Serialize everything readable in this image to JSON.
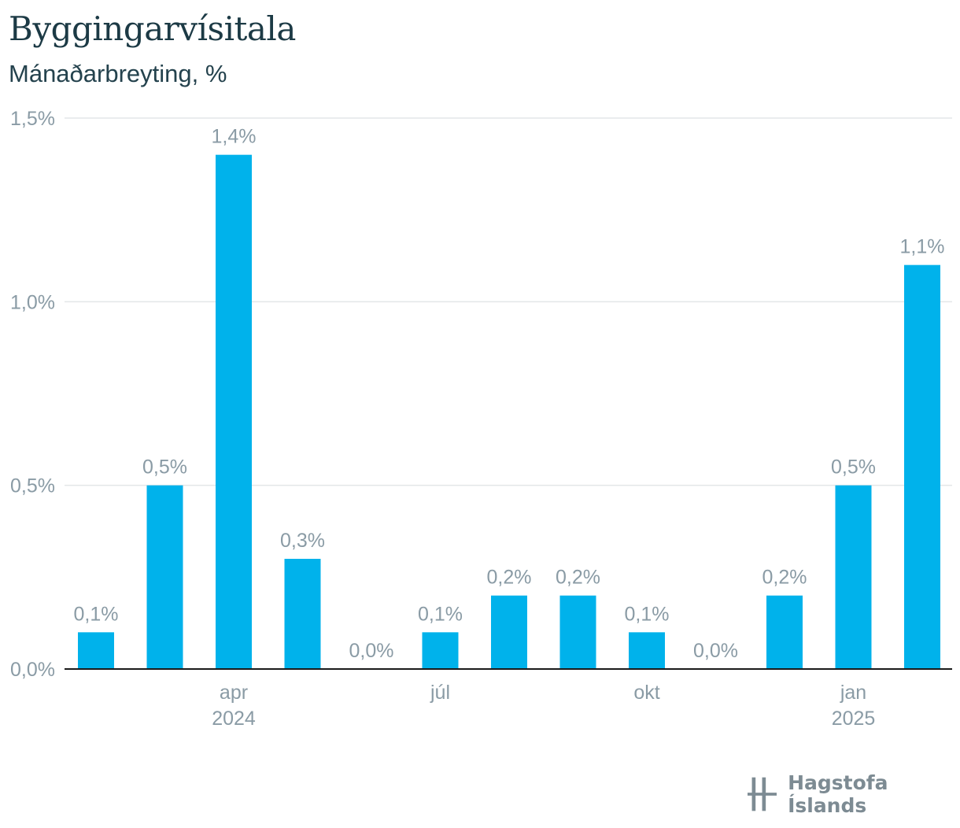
{
  "chart_data": {
    "type": "bar",
    "title": "Byggingarvísitala",
    "subtitle": "Mánaðarbreyting, %",
    "categories": [
      "2024-02",
      "2024-03",
      "2024-04",
      "2024-05",
      "2024-06",
      "2024-07",
      "2024-08",
      "2024-09",
      "2024-10",
      "2024-11",
      "2024-12",
      "2025-01",
      "2025-02"
    ],
    "values": [
      0.1,
      0.5,
      1.4,
      0.3,
      0.0,
      0.1,
      0.2,
      0.2,
      0.1,
      0.0,
      0.2,
      0.5,
      1.1
    ],
    "data_labels": [
      "0,1%",
      "0,5%",
      "1,4%",
      "0,3%",
      "0,0%",
      "0,1%",
      "0,2%",
      "0,2%",
      "0,1%",
      "0,0%",
      "0,2%",
      "0,5%",
      "1,1%"
    ],
    "ylim": [
      0,
      1.5
    ],
    "yticks": [
      0,
      0.5,
      1.0,
      1.5
    ],
    "ytick_labels": [
      "0,0%",
      "0,5%",
      "1,0%",
      "1,5%"
    ],
    "xticks": [
      {
        "index": 2,
        "label": "apr",
        "sublabel": "2024"
      },
      {
        "index": 5,
        "label": "júl",
        "sublabel": ""
      },
      {
        "index": 8,
        "label": "okt",
        "sublabel": ""
      },
      {
        "index": 11,
        "label": "jan",
        "sublabel": "2025"
      }
    ],
    "grid": true,
    "bar_color": "#00b2eb",
    "axis_color": "#1a1a1a",
    "grid_color": "#e3e6e8"
  },
  "branding": {
    "logo_text": "Hagstofa Íslands",
    "logo_icon": "hagstofa-logo-icon"
  }
}
